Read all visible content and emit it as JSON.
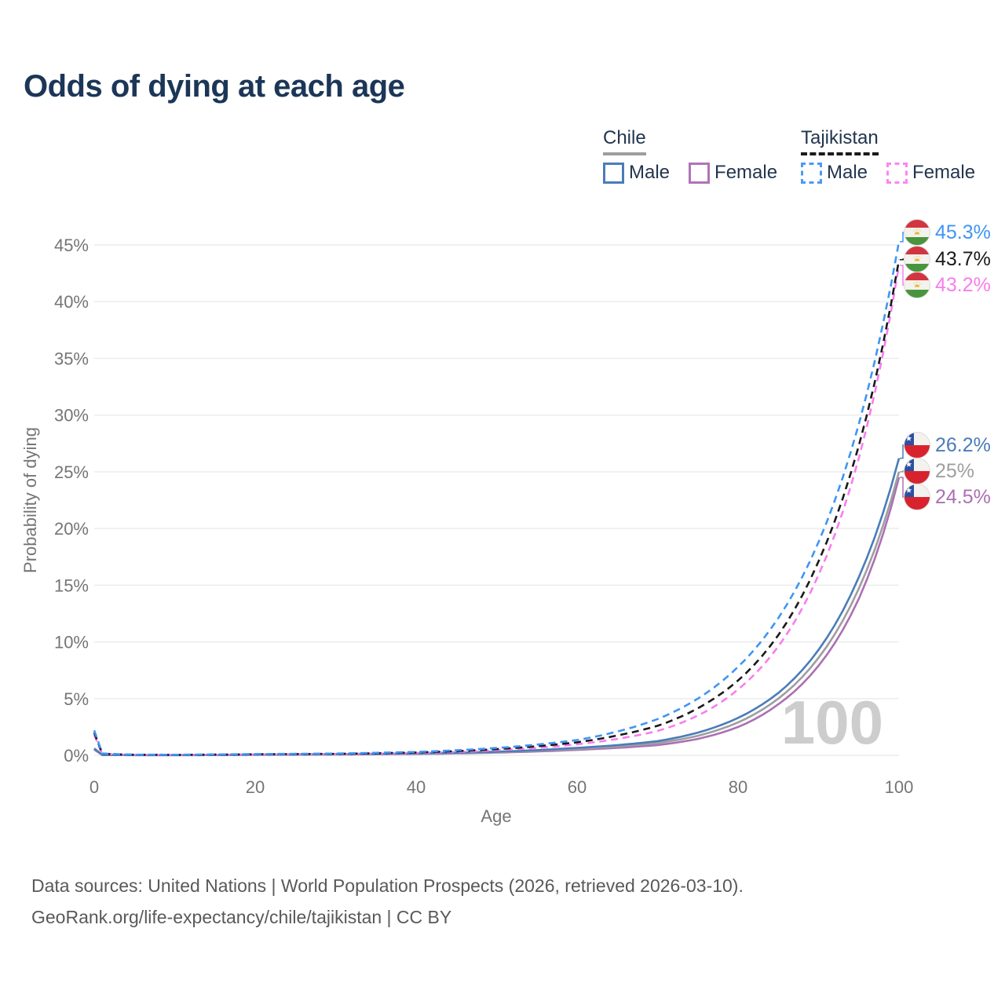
{
  "title": "Odds of dying at each age",
  "legend": {
    "groups": [
      {
        "country": "Chile",
        "line_style": "solid",
        "underline_color": "#9e9e9e",
        "items": [
          {
            "label": "Male",
            "color": "#4a7cba"
          },
          {
            "label": "Female",
            "color": "#b173b5"
          }
        ]
      },
      {
        "country": "Tajikistan",
        "line_style": "dashed",
        "underline_color": "#1a1a1a",
        "items": [
          {
            "label": "Male",
            "color": "#4c9af5"
          },
          {
            "label": "Female",
            "color": "#fb85f3"
          }
        ]
      }
    ]
  },
  "chart_data": {
    "type": "line",
    "title": "Odds of dying at each age",
    "xlabel": "Age",
    "ylabel": "Probability of dying",
    "xlim": [
      0,
      100
    ],
    "ylim": [
      0,
      46.5
    ],
    "x_ticks": [
      0,
      20,
      40,
      60,
      80,
      100
    ],
    "y_ticks": [
      0,
      5,
      10,
      15,
      20,
      25,
      30,
      35,
      40,
      45
    ],
    "y_tick_suffix": "%",
    "grid": "horizontal",
    "legend_position": "top-right",
    "watermark": "100",
    "ages": [
      0,
      1,
      5,
      10,
      15,
      20,
      25,
      30,
      35,
      40,
      45,
      50,
      55,
      60,
      65,
      70,
      75,
      80,
      85,
      90,
      95,
      100
    ],
    "series": [
      {
        "name": "Tajikistan Male",
        "color": "#4095f4",
        "dash": "dashed",
        "end_label": "45.3%",
        "values": [
          2.2,
          0.16,
          0.06,
          0.05,
          0.08,
          0.11,
          0.13,
          0.16,
          0.22,
          0.3,
          0.45,
          0.65,
          0.95,
          1.35,
          2.1,
          3.2,
          5.0,
          7.8,
          12.1,
          18.8,
          29.2,
          45.3
        ]
      },
      {
        "name": "Tajikistan",
        "color": "#1a1a1a",
        "dash": "dashed",
        "end_label": "43.7%",
        "values": [
          2.0,
          0.14,
          0.05,
          0.04,
          0.06,
          0.09,
          0.11,
          0.13,
          0.18,
          0.25,
          0.37,
          0.55,
          0.8,
          1.15,
          1.75,
          2.6,
          4.15,
          6.6,
          10.6,
          17.1,
          27.3,
          43.7
        ]
      },
      {
        "name": "Tajikistan Female",
        "color": "#f97ded",
        "dash": "dashed",
        "end_label": "43.2%",
        "values": [
          1.8,
          0.12,
          0.05,
          0.04,
          0.05,
          0.07,
          0.09,
          0.11,
          0.15,
          0.21,
          0.3,
          0.45,
          0.66,
          0.97,
          1.45,
          2.15,
          3.5,
          5.8,
          9.6,
          15.9,
          26.2,
          43.2
        ]
      },
      {
        "name": "Chile Male",
        "color": "#4a7cba",
        "dash": "solid",
        "end_label": "26.2%",
        "values": [
          0.6,
          0.04,
          0.02,
          0.02,
          0.04,
          0.07,
          0.09,
          0.11,
          0.13,
          0.17,
          0.23,
          0.32,
          0.46,
          0.66,
          0.9,
          1.25,
          2.0,
          3.3,
          5.5,
          9.3,
          15.7,
          26.2
        ]
      },
      {
        "name": "Chile",
        "color": "#9e9e9e",
        "dash": "solid",
        "end_label": "25%",
        "values": [
          0.55,
          0.035,
          0.018,
          0.016,
          0.03,
          0.05,
          0.07,
          0.09,
          0.11,
          0.15,
          0.2,
          0.28,
          0.4,
          0.57,
          0.78,
          1.08,
          1.72,
          2.9,
          5.0,
          8.6,
          14.7,
          25.0
        ]
      },
      {
        "name": "Chile Female",
        "color": "#ab70b3",
        "dash": "solid",
        "end_label": "24.5%",
        "values": [
          0.5,
          0.03,
          0.015,
          0.013,
          0.02,
          0.04,
          0.05,
          0.07,
          0.09,
          0.12,
          0.17,
          0.24,
          0.34,
          0.48,
          0.66,
          0.9,
          1.45,
          2.5,
          4.5,
          7.9,
          13.8,
          24.5
        ]
      }
    ]
  },
  "end_labels": [
    {
      "value": "45.3%",
      "color": "#4095f4",
      "flag": "tajikistan"
    },
    {
      "value": "43.7%",
      "color": "#1a1a1a",
      "flag": "tajikistan"
    },
    {
      "value": "43.2%",
      "color": "#f97ded",
      "flag": "tajikistan"
    },
    {
      "value": "26.2%",
      "color": "#4a7cba",
      "flag": "chile"
    },
    {
      "value": "25%",
      "color": "#9e9e9e",
      "flag": "chile"
    },
    {
      "value": "24.5%",
      "color": "#ab70b3",
      "flag": "chile"
    }
  ],
  "source": {
    "line1": "Data sources: United Nations | World Population Prospects (2026, retrieved 2026-03-10).",
    "line2": "GeoRank.org/life-expectancy/chile/tajikistan | CC BY"
  }
}
